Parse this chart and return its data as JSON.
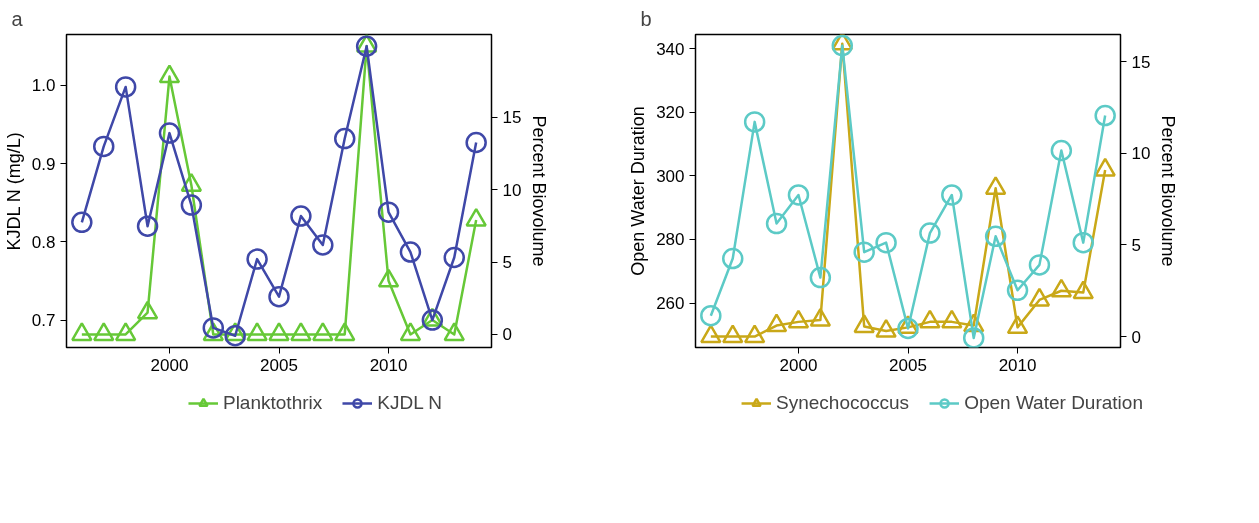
{
  "chart_data": [
    {
      "type": "line",
      "annotations": [
        "a"
      ],
      "ylabel": "KJDL N (mg/L)",
      "y2label": "Percent Biovolume",
      "x": [
        1996,
        1997,
        1998,
        1999,
        2000,
        2001,
        2002,
        2003,
        2004,
        2005,
        2006,
        2007,
        2008,
        2009,
        2010,
        2011,
        2012,
        2013,
        2014
      ],
      "xlim": [
        1995.3,
        2014.7
      ],
      "xticks": [
        2000,
        2005,
        2010
      ],
      "ylim": [
        0.665,
        1.065
      ],
      "yticks": [
        {
          "value": 0.7,
          "label": "0.7"
        },
        {
          "value": 0.8,
          "label": "0.8"
        },
        {
          "value": 0.9,
          "label": "0.9"
        },
        {
          "value": 1.0,
          "label": "1.0"
        }
      ],
      "y2lim": [
        -0.9,
        20.7
      ],
      "y2ticks": [
        0,
        5,
        10,
        15
      ],
      "grid": false,
      "legend": "bottom",
      "line_style": "solid",
      "series": [
        {
          "name": "Planktothrix",
          "color": "#66c837",
          "axis": "y2",
          "marker": "triangle",
          "values": [
            0,
            0,
            0,
            1.5,
            17.8,
            10.3,
            0,
            0,
            0,
            0,
            0,
            0,
            0,
            19.9,
            3.7,
            0,
            1.0,
            0,
            7.9
          ]
        },
        {
          "name": "KJDL N",
          "color": "#3f48a8",
          "axis": "y",
          "marker": "circle",
          "values": [
            0.825,
            0.922,
            0.998,
            0.82,
            0.939,
            0.847,
            0.69,
            0.68,
            0.778,
            0.73,
            0.833,
            0.796,
            0.932,
            1.05,
            0.838,
            0.787,
            0.7,
            0.78,
            0.927
          ]
        }
      ]
    },
    {
      "type": "line",
      "annotations": [
        "b"
      ],
      "ylabel": "Open Water Duration",
      "y2label": "Percent Biovolume",
      "x": [
        1996,
        1997,
        1998,
        1999,
        2000,
        2001,
        2002,
        2003,
        2004,
        2005,
        2006,
        2007,
        2008,
        2009,
        2010,
        2011,
        2012,
        2013,
        2014
      ],
      "xlim": [
        1995.3,
        2014.7
      ],
      "xticks": [
        2000,
        2005,
        2010
      ],
      "ylim": [
        246,
        344.5
      ],
      "yticks": [
        260,
        280,
        300,
        320,
        340
      ],
      "y2lim": [
        -0.6,
        16.5
      ],
      "y2ticks": [
        0,
        5,
        10,
        15
      ],
      "grid": false,
      "legend": "bottom",
      "line_style": "solid",
      "series": [
        {
          "name": "Synechococcus",
          "color": "#c9a818",
          "axis": "y2",
          "marker": "triangle",
          "values": [
            0,
            0,
            0,
            0.6,
            0.8,
            0.9,
            16.0,
            0.55,
            0.3,
            0.5,
            0.8,
            0.8,
            0.6,
            8.1,
            0.5,
            2.0,
            2.5,
            2.4,
            9.1
          ]
        },
        {
          "name": "Open Water Duration",
          "color": "#5ccac6",
          "axis": "y",
          "marker": "circle",
          "values": [
            256,
            274,
            317,
            285,
            294,
            268,
            341,
            276,
            279,
            252,
            282,
            294,
            249,
            281,
            264,
            272,
            308,
            279,
            319
          ]
        }
      ]
    }
  ]
}
